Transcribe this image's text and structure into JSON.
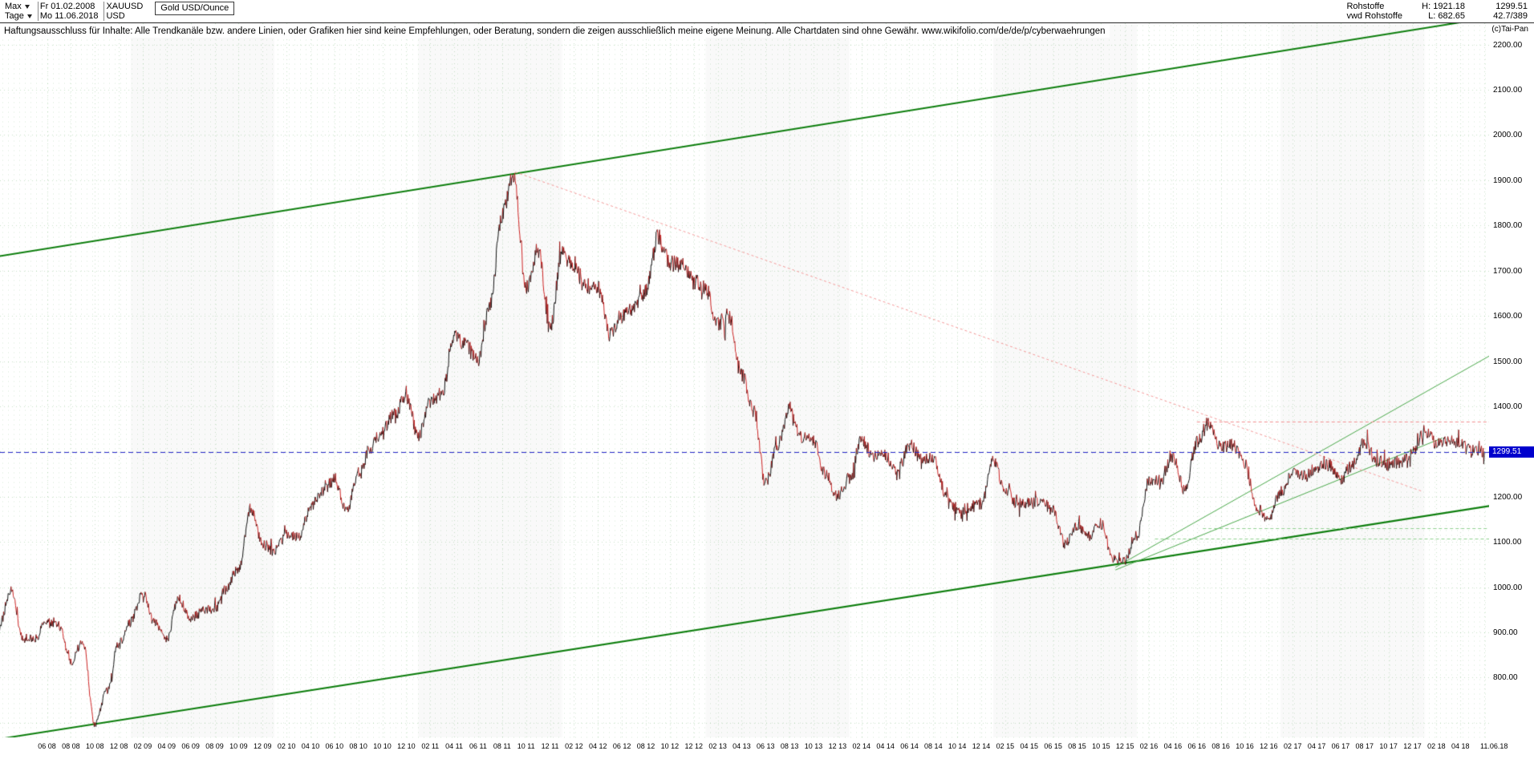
{
  "header": {
    "range_label": "Max",
    "period_label": "Tage",
    "start_date": "Fr 01.02.2008",
    "end_date": "Mo 11.06.2018",
    "symbol": "XAUUSD",
    "currency": "USD",
    "instrument": "Gold USD/Ounce",
    "right": {
      "line1_label": "Rohstoffe",
      "high": "H: 1921.18",
      "last": "1299.51",
      "line2_label": "vwd Rohstoffe",
      "low": "L: 682.65",
      "change": "42.7/389",
      "copyright": "(c)Tai-Pan"
    }
  },
  "disclaimer": {
    "text": "Haftungsausschluss für Inhalte: Alle Trendkanäle bzw. andere Linien, oder Grafiken hier sind keine Empfehlungen, oder Beratung, sondern die zeigen ausschließlich meine eigene Meinung. Alle Chartdaten sind ohne Gewähr.",
    "link": "www.wikifolio.com/de/de/p/cyberwaehrungen"
  },
  "axes": {
    "y_labels": [
      "2200.00",
      "2100.00",
      "2000.00",
      "1900.00",
      "1800.00",
      "1700.00",
      "1600.00",
      "1500.00",
      "1400.00",
      "1200.00",
      "1100.00",
      "1000.00",
      "900.00",
      "800.00"
    ],
    "price_tag": "1299.51",
    "x_labels": [
      "06 08",
      "08 08",
      "10 08",
      "12 08",
      "02 09",
      "04 09",
      "06 09",
      "08 09",
      "10 09",
      "12 09",
      "02 10",
      "04 10",
      "06 10",
      "08 10",
      "10 10",
      "12 10",
      "02 11",
      "04 11",
      "06 11",
      "08 11",
      "10 11",
      "12 11",
      "02 12",
      "04 12",
      "06 12",
      "08 12",
      "10 12",
      "12 12",
      "02 13",
      "04 13",
      "06 13",
      "08 13",
      "10 13",
      "12 13",
      "02 14",
      "04 14",
      "06 14",
      "08 14",
      "10 14",
      "12 14",
      "02 15",
      "04 15",
      "06 15",
      "08 15",
      "10 15",
      "12 15",
      "02 16",
      "04 16",
      "06 16",
      "08 16",
      "10 16",
      "12 16",
      "02 17",
      "04 17",
      "06 17",
      "08 17",
      "10 17",
      "12 17",
      "02 18",
      "04 18"
    ],
    "last_x_label": "11.06.18"
  },
  "chart_data": {
    "type": "line",
    "title": "Gold USD/Ounce",
    "symbol": "XAUUSD",
    "start_month": "2008-02",
    "interval": "monthly",
    "values": [
      912,
      995,
      890,
      888,
      925,
      915,
      833,
      880,
      695,
      770,
      875,
      925,
      985,
      920,
      885,
      975,
      930,
      950,
      950,
      1000,
      1040,
      1175,
      1095,
      1080,
      1115,
      1110,
      1175,
      1210,
      1240,
      1170,
      1245,
      1308,
      1345,
      1385,
      1420,
      1335,
      1410,
      1430,
      1555,
      1535,
      1500,
      1625,
      1825,
      1910,
      1655,
      1745,
      1575,
      1735,
      1715,
      1665,
      1660,
      1560,
      1600,
      1615,
      1655,
      1775,
      1715,
      1715,
      1675,
      1660,
      1580,
      1595,
      1470,
      1390,
      1230,
      1315,
      1395,
      1330,
      1325,
      1250,
      1200,
      1245,
      1325,
      1290,
      1290,
      1250,
      1315,
      1285,
      1287,
      1210,
      1170,
      1175,
      1185,
      1280,
      1215,
      1185,
      1185,
      1190,
      1170,
      1095,
      1135,
      1115,
      1140,
      1065,
      1060,
      1115,
      1235,
      1235,
      1290,
      1215,
      1320,
      1360,
      1310,
      1315,
      1270,
      1175,
      1150,
      1210,
      1250,
      1245,
      1265,
      1270,
      1240,
      1270,
      1320,
      1280,
      1270,
      1275,
      1300,
      1345,
      1320,
      1325,
      1315,
      1300,
      1299.51
    ],
    "high": 1921.18,
    "low": 682.65,
    "last": 1299.51,
    "ylim": [
      667,
      2210
    ],
    "grid": true,
    "legend": "none",
    "trendlines": [
      {
        "name": "upper-channel",
        "m1": -0.5,
        "p1": 1730,
        "m2": 125.5,
        "p2": 2264,
        "color": "#0b7d0b",
        "width": 2
      },
      {
        "name": "lower-channel",
        "m1": -0.5,
        "p1": 662,
        "m2": 125.5,
        "p2": 1184,
        "color": "#0b7d0b",
        "width": 2
      },
      {
        "name": "rising-support-steep",
        "m1": 93.2,
        "p1": 1044,
        "m2": 125,
        "p2": 1520,
        "color": "#4aa84a",
        "width": 1
      },
      {
        "name": "rising-support-shallow",
        "m1": 93.2,
        "p1": 1038,
        "m2": 120.5,
        "p2": 1330,
        "color": "#4aa84a",
        "width": 1
      },
      {
        "name": "descending-resistance",
        "m1": 43.1,
        "p1": 1918,
        "m2": 118.8,
        "p2": 1212,
        "color": "#f49898",
        "width": 1,
        "dash": [
          3,
          3
        ]
      }
    ],
    "hlines": [
      {
        "name": "resistance-level",
        "price": 1367,
        "from": 100,
        "to": 125.5,
        "color": "#f08f8f",
        "dash": [
          4,
          3
        ]
      },
      {
        "name": "support-level-1",
        "price": 1131,
        "from": 100.5,
        "to": 125.5,
        "color": "#8fd08f",
        "dash": [
          4,
          3
        ]
      },
      {
        "name": "support-level-2",
        "price": 1107,
        "from": 96.5,
        "to": 125.5,
        "color": "#8fd08f",
        "dash": [
          4,
          3
        ]
      },
      {
        "name": "current-price-line",
        "price": 1299.51,
        "from": -0.5,
        "to": 125.5,
        "color": "#2424c8",
        "dash": [
          6,
          4
        ]
      }
    ],
    "colors": {
      "up": "#111111",
      "down": "#cc2222",
      "channel": "#0b7d0b",
      "support": "#4aa84a",
      "resistance_dash": "#f49898",
      "support_dash": "#8fd08f",
      "current": "#2424c8",
      "grid": "#cfe8cf",
      "tag_bg": "#0000cd",
      "tag_fg": "#ffffff"
    }
  }
}
